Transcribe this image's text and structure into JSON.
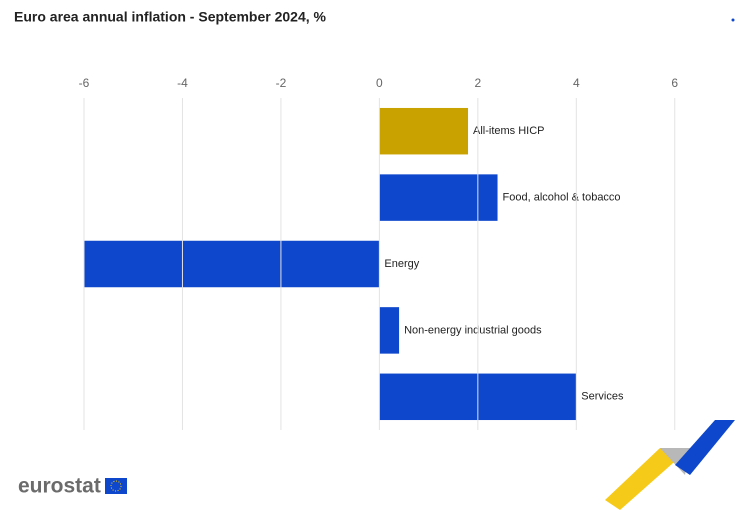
{
  "chart_data": {
    "type": "bar",
    "orientation": "horizontal",
    "title": "Euro area annual inflation - September 2024, %",
    "categories": [
      "All-items HICP",
      "Food, alcohol & tobacco",
      "Energy",
      "Non-energy industrial goods",
      "Services"
    ],
    "values": [
      1.8,
      2.4,
      -6.0,
      0.4,
      4.0
    ],
    "colors": [
      "#c9a200",
      "#0e47cb",
      "#0e47cb",
      "#0e47cb",
      "#0e47cb"
    ],
    "xlim": [
      -6,
      7
    ],
    "xticks": [
      -6,
      -4,
      -2,
      0,
      2,
      4,
      6
    ],
    "grid": true
  },
  "logo": "eurostat"
}
